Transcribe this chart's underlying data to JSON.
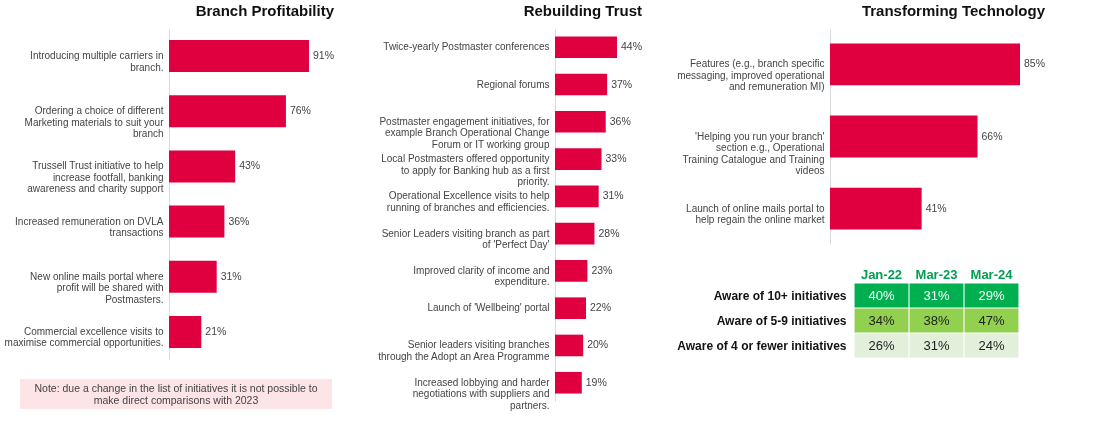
{
  "chart_data": [
    {
      "type": "bar",
      "orientation": "horizontal",
      "title": "Branch Profitability",
      "categories": [
        "Introducing multiple carriers in branch.",
        "Ordering a choice of different Marketing materials to suit your branch",
        "Trussell Trust initiative to help increase footfall, banking awareness and charity support",
        "Increased remuneration on DVLA transactions",
        "New online mails portal where profit will be shared with Postmasters.",
        "Commercial excellence visits to maximise commercial opportunities."
      ],
      "values": [
        91,
        76,
        43,
        36,
        31,
        21
      ],
      "value_labels": [
        "91%",
        "76%",
        "43%",
        "36%",
        "31%",
        "21%"
      ],
      "color": "#e0003f",
      "annotations": [
        "Note: due a change in the list of initiatives it is not possible to make direct comparisons with 2023"
      ]
    },
    {
      "type": "bar",
      "orientation": "horizontal",
      "title": "Rebuilding Trust",
      "categories": [
        "Twice-yearly Postmaster conferences",
        "Regional forums",
        "Postmaster engagement initiatives, for example Branch Operational Change Forum or IT working group",
        "Local Postmasters offered opportunity to apply for Banking hub as a first priority.",
        "Operational Excellence visits to help running of branches and efficiencies.",
        "Senior Leaders visiting branch as part of 'Perfect Day'",
        "Improved clarity of income and expenditure.",
        "Launch of 'Wellbeing' portal",
        "Senior leaders visiting branches through the Adopt an Area Programme",
        "Increased lobbying and harder negotiations with suppliers and partners."
      ],
      "values": [
        44,
        37,
        36,
        33,
        31,
        28,
        23,
        22,
        20,
        19
      ],
      "value_labels": [
        "44%",
        "37%",
        "36%",
        "33%",
        "31%",
        "28%",
        "23%",
        "22%",
        "20%",
        "19%"
      ],
      "color": "#e0003f"
    },
    {
      "type": "bar",
      "orientation": "horizontal",
      "title": "Transforming Technology",
      "categories": [
        "Features (e.g., branch specific messaging, improved operational and remuneration MI)",
        "'Helping you run your branch' section e.g., Operational Training Catalogue and Training videos",
        "Launch of online mails portal to help regain the online market"
      ],
      "values": [
        85,
        66,
        41
      ],
      "value_labels": [
        "85%",
        "66%",
        "41%"
      ],
      "color": "#e0003f"
    },
    {
      "type": "heatmap",
      "categories": [
        "Jan-22",
        "Mar-23",
        "Mar-24"
      ],
      "y_categories": [
        "Aware of 10+ initiatives",
        "Aware of 5-9 initiatives",
        "Aware of 4 or fewer initiatives"
      ],
      "cells": [
        [
          40,
          31,
          29
        ],
        [
          34,
          38,
          47
        ],
        [
          26,
          31,
          24
        ]
      ],
      "cell_labels": [
        [
          "40%",
          "31%",
          "29%"
        ],
        [
          "34%",
          "38%",
          "47%"
        ],
        [
          "26%",
          "31%",
          "24%"
        ]
      ],
      "colors": [
        "#00b050",
        "#92d050",
        "#e2efda"
      ]
    }
  ]
}
